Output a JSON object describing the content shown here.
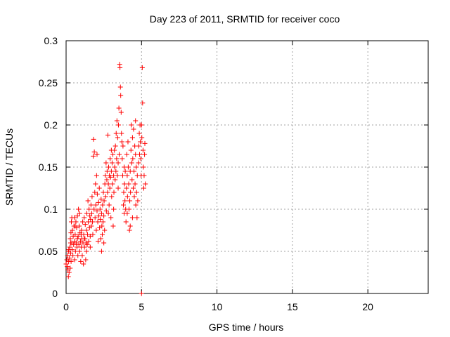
{
  "chart_data": {
    "type": "scatter",
    "title": "Day 223 of 2011, SRMTID for receiver coco",
    "xlabel": "GPS time / hours",
    "ylabel": "SRMTID / TECUs",
    "xlim": [
      0,
      24
    ],
    "ylim": [
      0,
      0.3
    ],
    "x_ticks": [
      0,
      5,
      10,
      15,
      20
    ],
    "y_ticks": [
      0,
      0.05,
      0.1,
      0.15,
      0.2,
      0.25,
      0.3
    ],
    "x_tick_labels": [
      "0",
      "5",
      "10",
      "15",
      "20"
    ],
    "y_tick_labels": [
      "0",
      "0.05",
      "0.1",
      "0.15",
      "0.2",
      "0.25",
      "0.3"
    ],
    "grid": true,
    "marker": "+",
    "color": "#ff0000",
    "series": [
      {
        "name": "SRMTID",
        "points": [
          [
            0.0,
            0.035
          ],
          [
            0.05,
            0.04
          ],
          [
            0.08,
            0.032
          ],
          [
            0.1,
            0.045
          ],
          [
            0.12,
            0.028
          ],
          [
            0.15,
            0.02
          ],
          [
            0.17,
            0.038
          ],
          [
            0.18,
            0.052
          ],
          [
            0.2,
            0.025
          ],
          [
            0.22,
            0.042
          ],
          [
            0.25,
            0.055
          ],
          [
            0.27,
            0.03
          ],
          [
            0.28,
            0.065
          ],
          [
            0.3,
            0.048
          ],
          [
            0.32,
            0.072
          ],
          [
            0.33,
            0.038
          ],
          [
            0.35,
            0.085
          ],
          [
            0.37,
            0.06
          ],
          [
            0.38,
            0.09
          ],
          [
            0.4,
            0.052
          ],
          [
            0.42,
            0.075
          ],
          [
            0.45,
            0.045
          ],
          [
            0.47,
            0.068
          ],
          [
            0.5,
            0.058
          ],
          [
            0.52,
            0.08
          ],
          [
            0.55,
            0.062
          ],
          [
            0.57,
            0.04
          ],
          [
            0.6,
            0.07
          ],
          [
            0.62,
            0.05
          ],
          [
            0.65,
            0.085
          ],
          [
            0.67,
            0.06
          ],
          [
            0.7,
            0.078
          ],
          [
            0.72,
            0.055
          ],
          [
            0.75,
            0.092
          ],
          [
            0.78,
            0.045
          ],
          [
            0.8,
            0.068
          ],
          [
            0.82,
            0.1
          ],
          [
            0.85,
            0.058
          ],
          [
            0.87,
            0.08
          ],
          [
            0.9,
            0.05
          ],
          [
            0.92,
            0.072
          ],
          [
            0.95,
            0.062
          ],
          [
            0.97,
            0.038
          ],
          [
            1.0,
            0.055
          ],
          [
            1.02,
            0.075
          ],
          [
            1.05,
            0.065
          ],
          [
            1.07,
            0.045
          ],
          [
            1.1,
            0.085
          ],
          [
            1.12,
            0.06
          ],
          [
            1.15,
            0.035
          ],
          [
            1.17,
            0.07
          ],
          [
            1.2,
            0.09
          ],
          [
            1.22,
            0.055
          ],
          [
            1.25,
            0.065
          ],
          [
            1.27,
            0.082
          ],
          [
            1.3,
            0.04
          ],
          [
            1.32,
            0.06
          ],
          [
            1.35,
            0.075
          ],
          [
            1.37,
            0.095
          ],
          [
            1.4,
            0.058
          ],
          [
            1.42,
            0.07
          ],
          [
            1.45,
            0.11
          ],
          [
            1.47,
            0.085
          ],
          [
            1.5,
            0.062
          ],
          [
            1.52,
            0.1
          ],
          [
            1.55,
            0.078
          ],
          [
            1.57,
            0.092
          ],
          [
            1.6,
            0.068
          ],
          [
            1.62,
            0.088
          ],
          [
            1.65,
            0.105
          ],
          [
            1.67,
            0.08
          ],
          [
            1.7,
            0.095
          ],
          [
            1.72,
            0.115
          ],
          [
            1.75,
            0.085
          ],
          [
            1.77,
            0.07
          ],
          [
            1.8,
            0.163
          ],
          [
            1.82,
            0.183
          ],
          [
            1.85,
            0.1
          ],
          [
            1.87,
            0.168
          ],
          [
            1.9,
            0.12
          ],
          [
            1.92,
            0.09
          ],
          [
            1.95,
            0.13
          ],
          [
            1.97,
            0.105
          ],
          [
            2.0,
            0.075
          ],
          [
            2.02,
            0.14
          ],
          [
            2.05,
            0.098
          ],
          [
            2.07,
            0.118
          ],
          [
            2.1,
            0.085
          ],
          [
            2.12,
            0.062
          ],
          [
            2.15,
            0.108
          ],
          [
            2.17,
            0.092
          ],
          [
            2.2,
            0.125
          ],
          [
            2.22,
            0.078
          ],
          [
            2.25,
            0.1
          ],
          [
            2.27,
            0.088
          ],
          [
            2.3,
            0.065
          ],
          [
            2.32,
            0.112
          ],
          [
            2.35,
            0.095
          ],
          [
            2.37,
            0.08
          ],
          [
            2.4,
            0.07
          ],
          [
            2.42,
            0.105
          ],
          [
            2.45,
            0.085
          ],
          [
            2.47,
            0.12
          ],
          [
            2.5,
            0.092
          ],
          [
            2.52,
            0.11
          ],
          [
            2.55,
            0.075
          ],
          [
            2.57,
            0.13
          ],
          [
            2.6,
            0.14
          ],
          [
            2.62,
            0.115
          ],
          [
            2.65,
            0.155
          ],
          [
            2.67,
            0.098
          ],
          [
            2.7,
            0.135
          ],
          [
            2.72,
            0.145
          ],
          [
            2.75,
            0.12
          ],
          [
            2.77,
            0.188
          ],
          [
            2.8,
            0.13
          ],
          [
            2.82,
            0.15
          ],
          [
            2.85,
            0.105
          ],
          [
            2.87,
            0.14
          ],
          [
            2.9,
            0.125
          ],
          [
            2.92,
            0.16
          ],
          [
            2.95,
            0.138
          ],
          [
            2.97,
            0.09
          ],
          [
            3.0,
            0.145
          ],
          [
            3.02,
            0.115
          ],
          [
            3.05,
            0.155
          ],
          [
            3.07,
            0.13
          ],
          [
            3.1,
            0.165
          ],
          [
            3.12,
            0.08
          ],
          [
            3.15,
            0.14
          ],
          [
            3.17,
            0.12
          ],
          [
            3.2,
            0.17
          ],
          [
            3.22,
            0.15
          ],
          [
            3.25,
            0.135
          ],
          [
            3.27,
            0.175
          ],
          [
            3.3,
            0.145
          ],
          [
            3.32,
            0.19
          ],
          [
            3.35,
            0.16
          ],
          [
            3.37,
            0.205
          ],
          [
            3.4,
            0.14
          ],
          [
            3.42,
            0.185
          ],
          [
            3.45,
            0.155
          ],
          [
            3.47,
            0.2
          ],
          [
            3.5,
            0.22
          ],
          [
            3.52,
            0.165
          ],
          [
            3.55,
            0.272
          ],
          [
            3.57,
            0.268
          ],
          [
            3.6,
            0.245
          ],
          [
            3.62,
            0.235
          ],
          [
            3.65,
            0.215
          ],
          [
            3.67,
            0.19
          ],
          [
            3.7,
            0.18
          ],
          [
            3.72,
            0.16
          ],
          [
            3.75,
            0.14
          ],
          [
            3.77,
            0.175
          ],
          [
            3.8,
            0.105
          ],
          [
            3.82,
            0.12
          ],
          [
            3.85,
            0.095
          ],
          [
            3.87,
            0.13
          ],
          [
            3.9,
            0.11
          ],
          [
            3.92,
            0.145
          ],
          [
            3.95,
            0.1
          ],
          [
            3.97,
            0.085
          ],
          [
            4.0,
            0.125
          ],
          [
            4.02,
            0.165
          ],
          [
            4.05,
            0.14
          ],
          [
            4.07,
            0.115
          ],
          [
            4.1,
            0.18
          ],
          [
            4.12,
            0.15
          ],
          [
            4.15,
            0.13
          ],
          [
            4.17,
            0.1
          ],
          [
            4.2,
            0.075
          ],
          [
            4.22,
            0.11
          ],
          [
            4.25,
            0.145
          ],
          [
            4.27,
            0.12
          ],
          [
            4.3,
            0.17
          ],
          [
            4.32,
            0.2
          ],
          [
            4.35,
            0.155
          ],
          [
            4.37,
            0.135
          ],
          [
            4.4,
            0.185
          ],
          [
            4.42,
            0.16
          ],
          [
            4.45,
            0.125
          ],
          [
            4.47,
            0.195
          ],
          [
            4.5,
            0.145
          ],
          [
            4.52,
            0.115
          ],
          [
            4.55,
            0.175
          ],
          [
            4.57,
            0.13
          ],
          [
            4.6,
            0.165
          ],
          [
            4.62,
            0.105
          ],
          [
            4.65,
            0.15
          ],
          [
            4.67,
            0.12
          ],
          [
            4.7,
            0.09
          ],
          [
            4.72,
            0.14
          ],
          [
            4.75,
            0.11
          ],
          [
            4.8,
            0.155
          ],
          [
            4.82,
            0.175
          ],
          [
            4.85,
            0.19
          ],
          [
            4.87,
            0.165
          ],
          [
            4.9,
            0.2
          ],
          [
            4.92,
            0.18
          ],
          [
            4.95,
            0.16
          ],
          [
            4.97,
            0.14
          ],
          [
            5.0,
            0.2
          ],
          [
            5.0,
            0.0
          ],
          [
            5.02,
            0.185
          ],
          [
            5.05,
            0.268
          ],
          [
            5.07,
            0.226
          ],
          [
            5.1,
            0.17
          ],
          [
            5.12,
            0.15
          ],
          [
            5.15,
            0.125
          ],
          [
            5.17,
            0.14
          ],
          [
            5.2,
            0.165
          ],
          [
            5.22,
            0.178
          ],
          [
            5.25,
            0.13
          ],
          [
            0.3,
            0.06
          ],
          [
            0.55,
            0.09
          ],
          [
            0.9,
            0.095
          ],
          [
            1.35,
            0.05
          ],
          [
            2.05,
            0.165
          ],
          [
            2.5,
            0.06
          ],
          [
            3.15,
            0.1
          ],
          [
            3.85,
            0.15
          ],
          [
            4.4,
            0.09
          ],
          [
            4.6,
            0.205
          ],
          [
            1.0,
            0.07
          ],
          [
            1.2,
            0.065
          ],
          [
            0.6,
            0.08
          ],
          [
            0.15,
            0.05
          ],
          [
            2.8,
            0.095
          ],
          [
            3.45,
            0.125
          ],
          [
            4.05,
            0.095
          ],
          [
            1.6,
            0.055
          ],
          [
            0.75,
            0.065
          ],
          [
            2.35,
            0.05
          ],
          [
            3.0,
            0.17
          ],
          [
            4.25,
            0.08
          ]
        ]
      }
    ]
  }
}
